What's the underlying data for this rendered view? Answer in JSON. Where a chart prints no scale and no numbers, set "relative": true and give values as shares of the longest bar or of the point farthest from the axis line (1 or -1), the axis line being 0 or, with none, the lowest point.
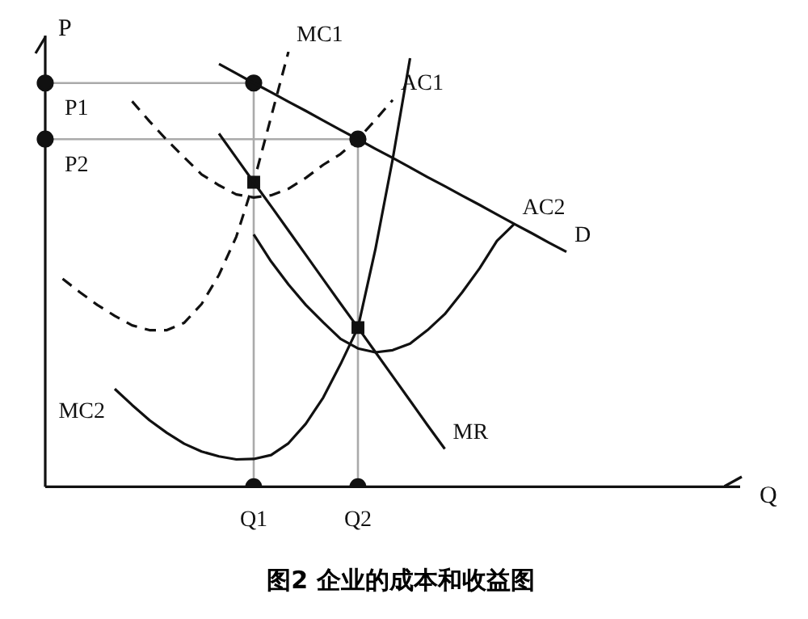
{
  "chart_data": {
    "type": "line",
    "title": "图2  企业的成本和收益图",
    "xlabel": "Q",
    "ylabel": "P",
    "relative": true,
    "legend": false,
    "marker": "none",
    "categories": [
      null,
      null,
      null,
      null,
      null,
      null,
      null,
      null,
      null,
      null,
      null,
      null,
      "Q1",
      null,
      null,
      null,
      null,
      null,
      "Q2",
      null,
      null,
      null,
      null,
      null,
      null,
      null,
      null,
      null,
      null,
      null,
      null,
      null,
      null,
      null,
      null,
      null,
      null,
      null,
      null,
      null,
      null
    ],
    "ref_lines": [
      {
        "axis": "y",
        "value": 0.928,
        "label": "P1",
        "color": "#aaaaaa"
      },
      {
        "axis": "y",
        "value": 0.799,
        "label": "P2",
        "color": "#aaaaaa"
      },
      {
        "axis": "x",
        "value": "Q1",
        "color": "#aaaaaa"
      },
      {
        "axis": "x",
        "value": "Q2",
        "color": "#aaaaaa"
      }
    ],
    "series": [
      {
        "type": "line",
        "name": "D",
        "color": "#111111",
        "line_style": "solid",
        "values": [
          null,
          null,
          null,
          null,
          null,
          null,
          null,
          null,
          null,
          null,
          0.972,
          0.95,
          0.928,
          0.907,
          0.885,
          0.864,
          0.842,
          0.82,
          0.799,
          0.777,
          0.756,
          0.734,
          0.712,
          0.691,
          0.669,
          0.648,
          0.626,
          0.604,
          0.583,
          0.561,
          0.54,
          null,
          null,
          null,
          null,
          null,
          null,
          null,
          null,
          null,
          null
        ]
      },
      {
        "type": "line",
        "name": "MR",
        "color": "#111111",
        "line_style": "solid",
        "values": [
          null,
          null,
          null,
          null,
          null,
          null,
          null,
          null,
          null,
          null,
          0.812,
          0.756,
          0.7,
          0.645,
          0.589,
          0.533,
          0.477,
          0.421,
          0.366,
          0.31,
          0.254,
          0.198,
          0.142,
          0.087,
          null,
          null,
          null,
          null,
          null,
          null,
          null,
          null,
          null,
          null,
          null,
          null,
          null,
          null,
          null,
          null,
          null
        ]
      },
      {
        "type": "line",
        "name": "MC1",
        "color": "#111111",
        "line_style": "dashed",
        "values": [
          null,
          0.478,
          0.447,
          0.418,
          0.393,
          0.371,
          0.36,
          0.36,
          0.377,
          0.42,
          0.487,
          0.575,
          0.7,
          0.85,
          1,
          null,
          null,
          null,
          null,
          null,
          null,
          null,
          null,
          null,
          null,
          null,
          null,
          null,
          null,
          null,
          null,
          null,
          null,
          null,
          null,
          null,
          null,
          null,
          null,
          null,
          null
        ]
      },
      {
        "type": "line",
        "name": "AC1",
        "color": "#111111",
        "line_style": "dashed",
        "values": [
          null,
          null,
          null,
          null,
          null,
          0.886,
          0.84,
          0.797,
          0.757,
          0.718,
          0.693,
          0.672,
          0.665,
          0.67,
          0.685,
          0.71,
          0.74,
          0.765,
          0.799,
          0.843,
          0.889,
          null,
          null,
          null,
          null,
          null,
          null,
          null,
          null,
          null,
          null,
          null,
          null,
          null,
          null,
          null,
          null,
          null,
          null,
          null,
          null
        ]
      },
      {
        "type": "line",
        "name": "AC2",
        "color": "#111111",
        "line_style": "solid",
        "values": [
          null,
          null,
          null,
          null,
          null,
          null,
          null,
          null,
          null,
          null,
          null,
          null,
          0.58,
          0.518,
          0.465,
          0.418,
          0.378,
          0.34,
          0.318,
          0.309,
          0.314,
          0.329,
          0.36,
          0.397,
          0.447,
          0.502,
          0.565,
          0.604,
          null,
          null,
          null,
          null,
          null,
          null,
          null,
          null,
          null,
          null,
          null,
          null,
          null
        ]
      },
      {
        "type": "line",
        "name": "MC2",
        "color": "#111111",
        "line_style": "solid",
        "values": [
          null,
          null,
          null,
          null,
          0.225,
          0.188,
          0.153,
          0.124,
          0.099,
          0.081,
          0.07,
          0.063,
          0.064,
          0.073,
          0.1,
          0.145,
          0.205,
          0.282,
          0.366,
          0.545,
          0.753,
          0.985,
          null,
          null,
          null,
          null,
          null,
          null,
          null,
          null,
          null,
          null,
          null,
          null,
          null,
          null,
          null,
          null,
          null,
          null,
          null
        ]
      },
      {
        "type": "scatter",
        "color": "#111111",
        "marker": "circle",
        "values": [
          0.928,
          null,
          null,
          null,
          null,
          null,
          null,
          null,
          null,
          null,
          null,
          null,
          0.928,
          null,
          null,
          null,
          null,
          null,
          null,
          null,
          null,
          null,
          null,
          null,
          null,
          null,
          null,
          null,
          null,
          null,
          null,
          null,
          null,
          null,
          null,
          null,
          null,
          null,
          null,
          null,
          null
        ]
      },
      {
        "type": "scatter",
        "color": "#111111",
        "marker": "circle",
        "values": [
          0.799,
          null,
          null,
          null,
          null,
          null,
          null,
          null,
          null,
          null,
          null,
          null,
          null,
          null,
          null,
          null,
          null,
          null,
          0.799,
          null,
          null,
          null,
          null,
          null,
          null,
          null,
          null,
          null,
          null,
          null,
          null,
          null,
          null,
          null,
          null,
          null,
          null,
          null,
          null,
          null,
          null
        ]
      },
      {
        "type": "scatter",
        "color": "#111111",
        "marker": "circle",
        "values": [
          null,
          null,
          null,
          null,
          null,
          null,
          null,
          null,
          null,
          null,
          null,
          null,
          0,
          null,
          null,
          null,
          null,
          null,
          0,
          null,
          null,
          null,
          null,
          null,
          null,
          null,
          null,
          null,
          null,
          null,
          null,
          null,
          null,
          null,
          null,
          null,
          null,
          null,
          null,
          null,
          null
        ]
      },
      {
        "type": "scatter",
        "color": "#111111",
        "marker": "square",
        "values": [
          null,
          null,
          null,
          null,
          null,
          null,
          null,
          null,
          null,
          null,
          null,
          null,
          0.7,
          null,
          null,
          null,
          null,
          null,
          0.366,
          null,
          null,
          null,
          null,
          null,
          null,
          null,
          null,
          null,
          null,
          null,
          null,
          null,
          null,
          null,
          null,
          null,
          null,
          null,
          null,
          null,
          null
        ]
      }
    ]
  }
}
